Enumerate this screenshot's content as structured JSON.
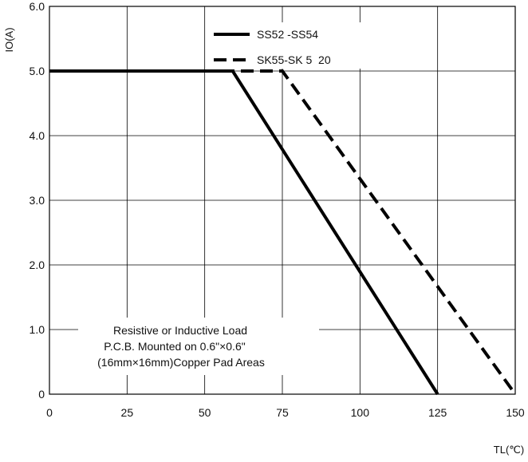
{
  "chart_data": {
    "type": "line",
    "xlabel": "TL(℃)",
    "ylabel": "IO(A)",
    "xlim": [
      0,
      150
    ],
    "ylim": [
      0,
      6.0
    ],
    "x_ticks": [
      0,
      25,
      50,
      75,
      100,
      125,
      150
    ],
    "x_tick_labels": [
      "0",
      "25",
      "50",
      "75",
      "100",
      "125",
      "150"
    ],
    "y_ticks": [
      0,
      1,
      2,
      3,
      4,
      5,
      6
    ],
    "y_tick_labels": [
      "0",
      "1.0",
      "2.0",
      "3.0",
      "4.0",
      "5.0",
      "6.0"
    ],
    "grid": true,
    "legend_position": "top-center",
    "series": [
      {
        "name": "SS52 -SS54",
        "style": "solid",
        "color": "#000000",
        "x": [
          0,
          59,
          125
        ],
        "y": [
          5.0,
          5.0,
          0
        ]
      },
      {
        "name": "SK55-SK 5  20",
        "style": "dashed",
        "color": "#000000",
        "x": [
          0,
          75,
          150
        ],
        "y": [
          5.0,
          5.0,
          0
        ]
      }
    ],
    "annotation": [
      "Resistive or Inductive Load",
      "P.C.B. Mounted on 0.6\"×0.6\"",
      "(16mm×16mm)Copper Pad Areas"
    ]
  }
}
